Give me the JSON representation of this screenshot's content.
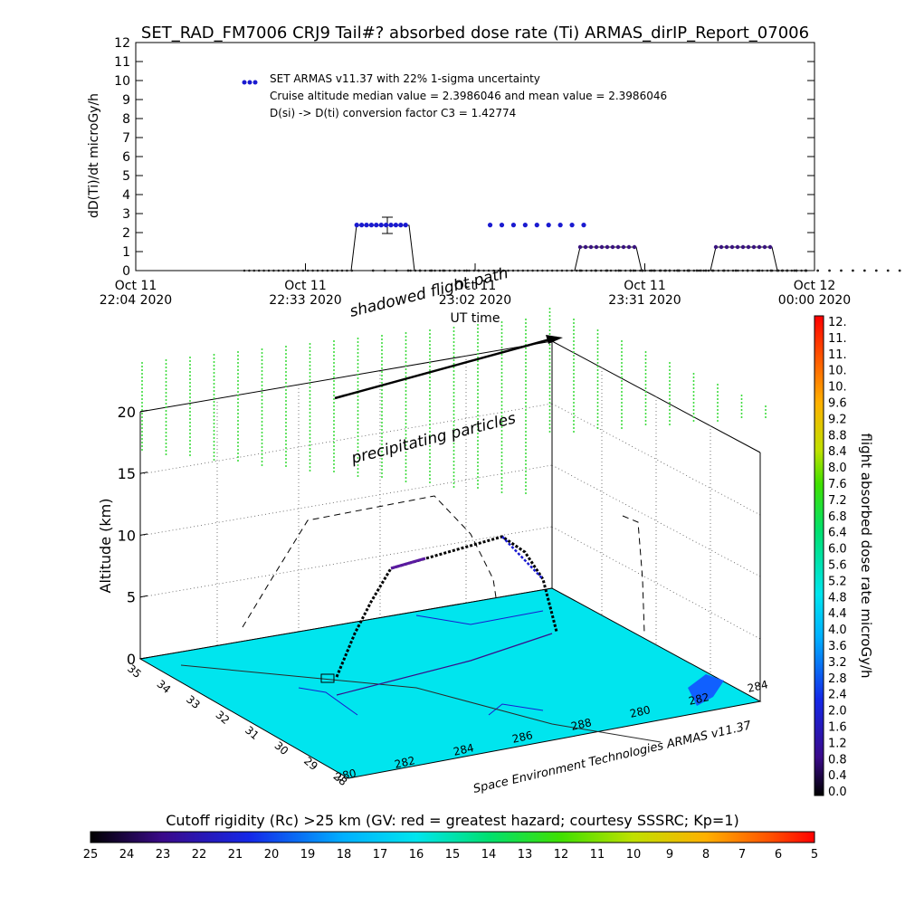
{
  "chart_data": [
    {
      "type": "scatter",
      "title": "SET_RAD_FM7006  CRJ9 Tail#? absorbed dose rate (Ti) ARMAS_dirIP_Report_07006",
      "ylabel": "dD(Ti)/dt microGy/h",
      "xlabel": "UT time",
      "ylim": [
        0,
        12
      ],
      "y_ticks": [
        "0",
        "1",
        "2",
        "3",
        "4",
        "5",
        "6",
        "7",
        "8",
        "9",
        "10",
        "11",
        "12"
      ],
      "x_ticks": [
        {
          "top": "Oct 11",
          "bottom": "22:04 2020"
        },
        {
          "top": "Oct 11",
          "bottom": "22:33 2020"
        },
        {
          "top": "Oct 11",
          "bottom": "23:02 2020"
        },
        {
          "top": "Oct 11",
          "bottom": "23:31 2020"
        },
        {
          "top": "Oct 12",
          "bottom": "00:00 2020"
        }
      ],
      "x_unit": "minutes after 22:04 UT",
      "legend": {
        "position": "top-left",
        "entries": [
          "SET ARMAS v11.37 with 22% 1-sigma uncertainty",
          "Cruise altitude median value = 2.3986046 and mean value = 2.3986046",
          "D(si) -> D(ti) conversion factor C3 = 1.42774"
        ]
      },
      "series": [
        {
          "name": "SET ARMAS v11.37",
          "x": [
            22,
            24,
            26,
            28,
            30,
            32,
            34,
            36,
            38,
            40,
            42,
            44,
            46,
            48,
            50,
            52,
            54,
            56,
            58,
            60,
            62,
            64,
            66,
            68,
            70,
            72,
            74,
            76,
            78,
            80,
            82,
            84,
            86,
            88,
            90,
            92,
            94,
            96,
            98,
            100,
            102,
            104,
            106,
            108,
            110,
            112,
            114,
            116
          ],
          "values": [
            0,
            0,
            0,
            0,
            0,
            0,
            0,
            0,
            0,
            0,
            2.4,
            2.4,
            2.4,
            2.4,
            2.4,
            2.4,
            2.4,
            2.4,
            2.4,
            0,
            0,
            0,
            0,
            0,
            0,
            0,
            0,
            0,
            0,
            0,
            0,
            0,
            0,
            0,
            0,
            0,
            0,
            0,
            0,
            0,
            0,
            0,
            0,
            0,
            0,
            0,
            0,
            0
          ]
        }
      ],
      "error_bar": {
        "x": 48,
        "y": 2.4,
        "sigma": 0.53
      }
    },
    {
      "type": "scatter",
      "title": "",
      "z_label": "Altitude (km)",
      "z_ticks": [
        "0",
        "5",
        "10",
        "15",
        "20"
      ],
      "lat_ticks": [
        "35",
        "34",
        "33",
        "32",
        "31",
        "30",
        "29",
        "28"
      ],
      "lon_ticks": [
        "280",
        "282",
        "284",
        "286",
        "288",
        "280",
        "282",
        "284"
      ],
      "footer": "Space Environment Technologies ARMAS v11.37",
      "annotations": [
        "shadowed flight path",
        "precipitating particles"
      ],
      "colorbar_dose": {
        "label": "flight absorbed dose rate microGy/h",
        "ticks": [
          "12.",
          "11.",
          "11.",
          "10.",
          "10.",
          "9.6",
          "9.2",
          "8.8",
          "8.4",
          "8.0",
          "7.6",
          "7.2",
          "6.8",
          "6.4",
          "6.0",
          "5.6",
          "5.2",
          "4.8",
          "4.4",
          "4.0",
          "3.6",
          "3.2",
          "2.8",
          "2.4",
          "2.0",
          "1.6",
          "1.2",
          "0.8",
          "0.4",
          "0.0"
        ]
      },
      "colorbar_cutoff": {
        "label": "Cutoff rigidity (Rc) >25 km (GV: red = greatest hazard; courtesy SSSRC; Kp=1)",
        "ticks": [
          "25",
          "24",
          "23",
          "22",
          "21",
          "20",
          "19",
          "18",
          "17",
          "16",
          "15",
          "14",
          "13",
          "12",
          "11",
          "10",
          "9",
          "8",
          "7",
          "6",
          "5"
        ]
      },
      "surface_color": "#00e5ee",
      "precip_color": "#3fdc3f"
    }
  ]
}
